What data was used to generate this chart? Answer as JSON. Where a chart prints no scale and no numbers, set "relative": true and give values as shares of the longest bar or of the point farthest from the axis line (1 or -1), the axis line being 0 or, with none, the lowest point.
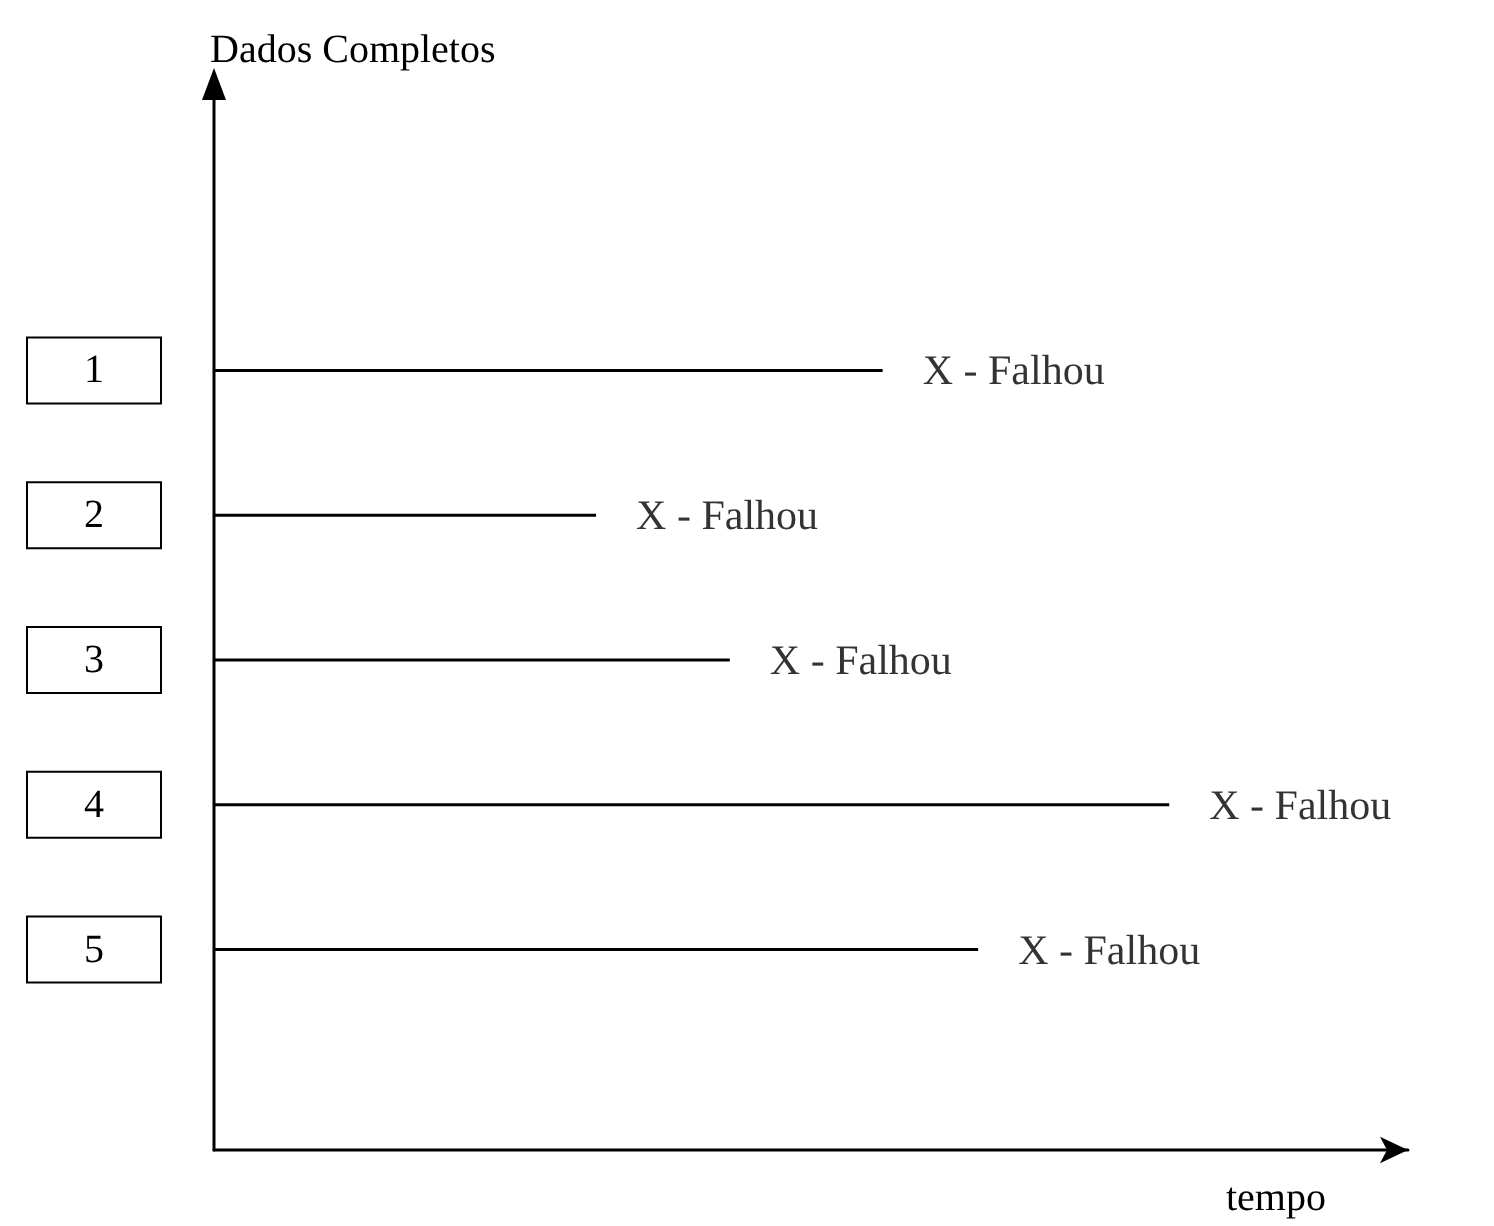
{
  "chart_data": {
    "type": "bar",
    "orientation": "horizontal",
    "relative": true,
    "title": "Dados Completos",
    "xlabel": "tempo",
    "categories": [
      "1",
      "2",
      "3",
      "4",
      "5"
    ],
    "series": [
      {
        "color": "#000000",
        "values": [
          0.7,
          0.4,
          0.54,
          1,
          0.8
        ]
      }
    ],
    "annotations": [
      {
        "text": "X - Falhou",
        "x": 0.7,
        "y": "1"
      },
      {
        "text": "X - Falhou",
        "x": 0.4,
        "y": "2"
      },
      {
        "text": "X - Falhou",
        "x": 0.54,
        "y": "3"
      },
      {
        "text": "X - Falhou",
        "x": 1,
        "y": "4"
      },
      {
        "text": "X - Falhou",
        "x": 0.8,
        "y": "5"
      }
    ],
    "grid": false
  }
}
